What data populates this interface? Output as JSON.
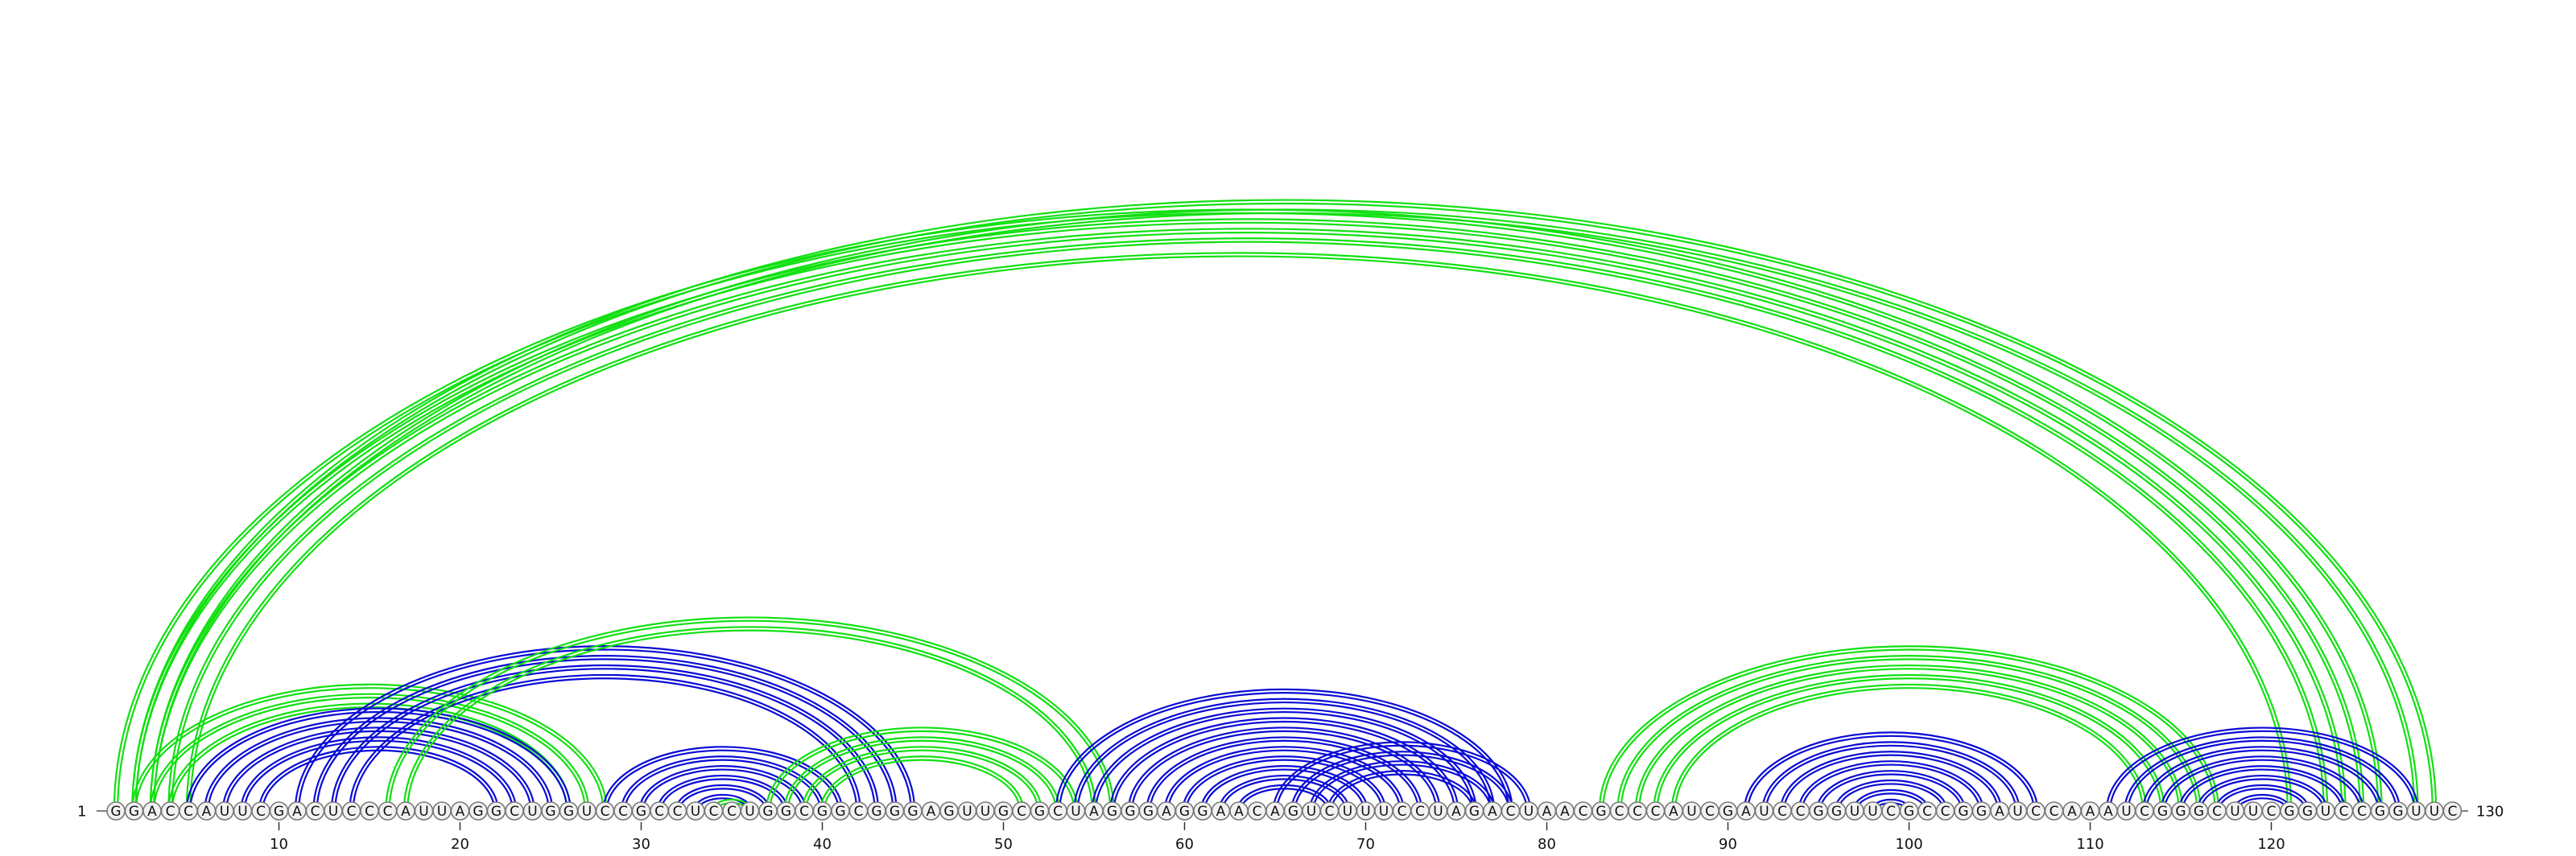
{
  "diagram": {
    "sequence": "GGACCAUUCGACUCCCAUUAGGCUGGUCCGCCUCCUGGCGGCGGGAGUUGCGCUAGGGAGGAACAGUCUUUCCUAGACUAACGCCCAUCGAUCCGGUUCGCCGGAUCCAAAUCGGGCUUCGGUCCGGUUC",
    "start_label": "1",
    "end_label": "130",
    "ticks": [
      10,
      20,
      30,
      40,
      50,
      60,
      70,
      80,
      90,
      100,
      110,
      120
    ],
    "colors": {
      "blue_pairs": "#0a0ad6",
      "green_pairs": "#11e011",
      "nucleotide_fill": "#f2f2f2",
      "nucleotide_stroke": "#777777"
    },
    "arc_groups": [
      {
        "color": "green",
        "pairs": [
          [
            1,
            126
          ],
          [
            2,
            125
          ],
          [
            3,
            124
          ],
          [
            4,
            123
          ],
          [
            5,
            121
          ]
        ]
      },
      {
        "color": "green",
        "pairs": [
          [
            2,
            129
          ],
          [
            3,
            128
          ]
        ]
      },
      {
        "color": "green",
        "pairs": [
          [
            2,
            28
          ],
          [
            3,
            27
          ],
          [
            4,
            26
          ]
        ]
      },
      {
        "color": "blue",
        "pairs": [
          [
            5,
            26
          ],
          [
            6,
            25
          ],
          [
            7,
            24
          ],
          [
            8,
            23
          ],
          [
            9,
            22
          ]
        ]
      },
      {
        "color": "blue",
        "pairs": [
          [
            11,
            45
          ],
          [
            12,
            44
          ],
          [
            13,
            43
          ],
          [
            14,
            42
          ]
        ]
      },
      {
        "color": "green",
        "pairs": [
          [
            16,
            56
          ],
          [
            17,
            55
          ]
        ]
      },
      {
        "color": "blue",
        "pairs": [
          [
            28,
            41
          ],
          [
            29,
            40
          ],
          [
            30,
            39
          ],
          [
            31,
            38
          ],
          [
            32,
            37
          ],
          [
            33,
            36
          ]
        ]
      },
      {
        "color": "green",
        "pairs": [
          [
            34,
            36
          ]
        ]
      },
      {
        "color": "green",
        "pairs": [
          [
            37,
            54
          ],
          [
            38,
            53
          ],
          [
            39,
            52
          ],
          [
            40,
            51
          ]
        ]
      },
      {
        "color": "blue",
        "pairs": [
          [
            53,
            78
          ],
          [
            54,
            77
          ],
          [
            55,
            76
          ],
          [
            56,
            75
          ],
          [
            57,
            74
          ],
          [
            58,
            73
          ],
          [
            59,
            72
          ],
          [
            60,
            71
          ],
          [
            61,
            70
          ],
          [
            62,
            69
          ],
          [
            63,
            68
          ]
        ]
      },
      {
        "color": "blue",
        "pairs": [
          [
            65,
            79
          ],
          [
            66,
            78
          ],
          [
            67,
            77
          ],
          [
            68,
            76
          ]
        ]
      },
      {
        "color": "green",
        "pairs": [
          [
            83,
            117
          ],
          [
            84,
            116
          ],
          [
            85,
            115
          ],
          [
            86,
            114
          ],
          [
            87,
            113
          ]
        ]
      },
      {
        "color": "blue",
        "pairs": [
          [
            91,
            107
          ],
          [
            92,
            106
          ],
          [
            93,
            105
          ],
          [
            94,
            104
          ],
          [
            95,
            103
          ],
          [
            96,
            102
          ],
          [
            97,
            101
          ],
          [
            98,
            100
          ]
        ]
      },
      {
        "color": "blue",
        "pairs": [
          [
            111,
            128
          ],
          [
            112,
            127
          ],
          [
            113,
            126
          ],
          [
            114,
            125
          ],
          [
            115,
            124
          ],
          [
            116,
            123
          ],
          [
            117,
            122
          ],
          [
            118,
            121
          ]
        ]
      }
    ]
  }
}
